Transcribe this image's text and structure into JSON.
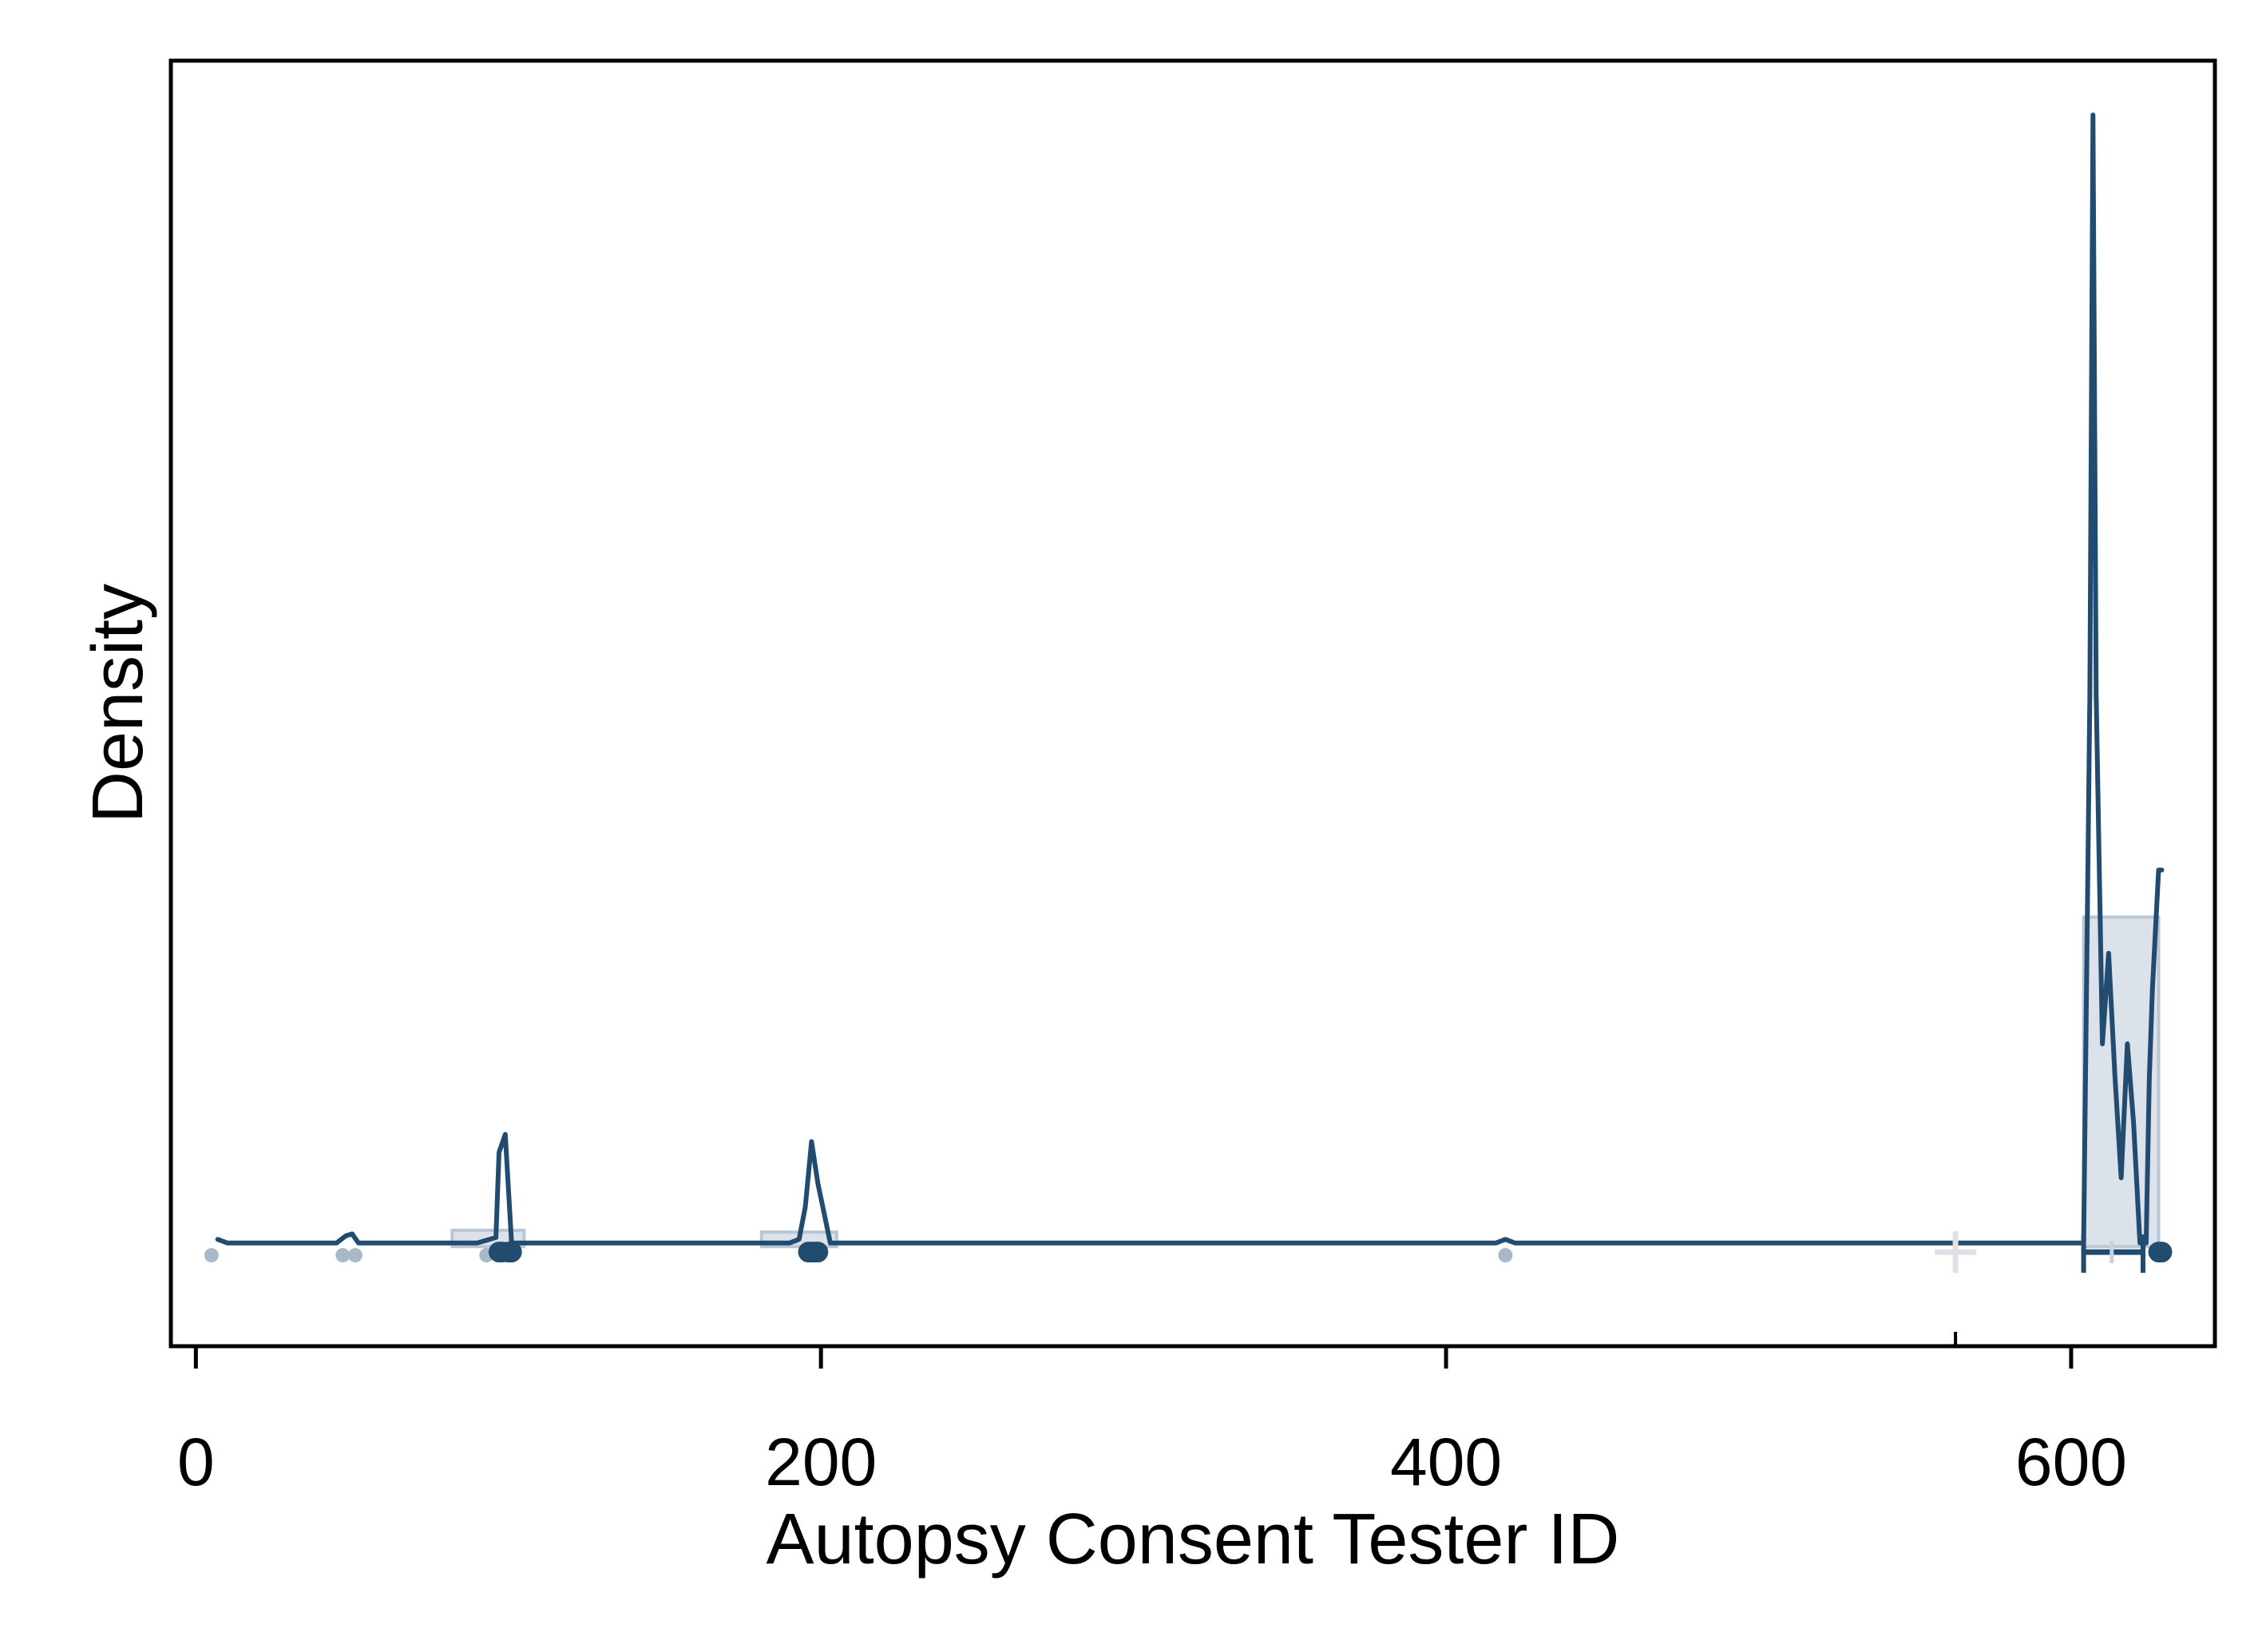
{
  "chart_data": {
    "type": "area",
    "title": "",
    "xlabel": "Autopsy Consent Tester ID",
    "ylabel": "Density",
    "xlim": [
      -8,
      646
    ],
    "ylim": [
      -0.0055,
      0.0655
    ],
    "x_ticks": [
      0,
      200,
      400,
      600
    ],
    "y_ticks": [],
    "grid": false,
    "legend": "none",
    "colors": {
      "line": "#224b70",
      "histogram_fill": "#dbe2ea",
      "histogram_edge": "#b9c6d3",
      "rug_light": "#a9b8c7",
      "rug_dark": "#224b70",
      "mean_marker": "#dde1e6",
      "frame": "#000000"
    },
    "histogram": [
      {
        "x0": 82,
        "x1": 105,
        "density": 0.0009
      },
      {
        "x0": 181,
        "x1": 205,
        "density": 0.0008
      },
      {
        "x0": 604,
        "x1": 628,
        "density": 0.0182
      }
    ],
    "density_curve": {
      "x": [
        7,
        10,
        20,
        45,
        48,
        50,
        52,
        90,
        96,
        97,
        99,
        101,
        103,
        105,
        190,
        193,
        195,
        197,
        199,
        203,
        205,
        405,
        416,
        419,
        422,
        430,
        602,
        604,
        606,
        607,
        608,
        610,
        612,
        614,
        616,
        618,
        620,
        622,
        624,
        625,
        626,
        628,
        629
      ],
      "y": [
        0.0004,
        0.0002,
        0.0002,
        0.0002,
        0.0006,
        0.0007,
        0.0002,
        0.0002,
        0.0005,
        0.0052,
        0.0062,
        0.0002,
        0.0002,
        0.0002,
        0.0002,
        0.0004,
        0.0022,
        0.0058,
        0.0035,
        0.0002,
        0.0002,
        0.0002,
        0.0002,
        0.0004,
        0.0002,
        0.0002,
        0.0002,
        0.0002,
        0.0305,
        0.0625,
        0.0305,
        0.0112,
        0.0162,
        0.0095,
        0.0038,
        0.0112,
        0.0068,
        0.0002,
        0.0002,
        0.0092,
        0.0142,
        0.0208,
        0.0208
      ]
    },
    "boxplot": {
      "q1": 604,
      "median": 613,
      "q3": 623,
      "y_level": -0.0003
    },
    "mean_marker": {
      "x": 563,
      "y": -0.0003
    },
    "rug_points": [
      {
        "x": 5,
        "tone": "light"
      },
      {
        "x": 47,
        "tone": "light"
      },
      {
        "x": 51,
        "tone": "light"
      },
      {
        "x": 93,
        "tone": "light"
      },
      {
        "x": 97,
        "tone": "dark"
      },
      {
        "x": 98,
        "tone": "dark"
      },
      {
        "x": 100,
        "tone": "dark"
      },
      {
        "x": 101,
        "tone": "dark"
      },
      {
        "x": 196,
        "tone": "dark"
      },
      {
        "x": 197,
        "tone": "dark"
      },
      {
        "x": 198,
        "tone": "dark"
      },
      {
        "x": 199,
        "tone": "dark"
      },
      {
        "x": 419,
        "tone": "light"
      },
      {
        "x": 628,
        "tone": "dark"
      },
      {
        "x": 629,
        "tone": "dark"
      }
    ]
  }
}
